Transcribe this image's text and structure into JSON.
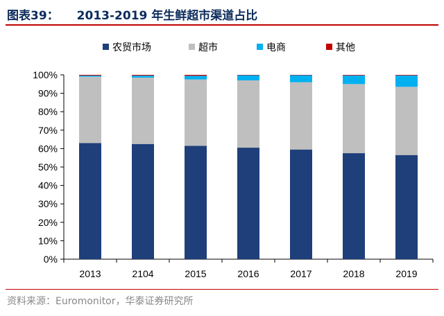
{
  "header": {
    "figure_label": "图表39：",
    "title": "2013-2019 年生鲜超市渠道占比"
  },
  "source_text": "资料来源：Euromonitor，华泰证券研究所",
  "chart_data": {
    "type": "bar",
    "stacked": true,
    "categories": [
      "2013",
      "2104",
      "2015",
      "2016",
      "2017",
      "2018",
      "2019"
    ],
    "series": [
      {
        "name": "农贸市场",
        "color": "#1f3f7a",
        "values": [
          63,
          62.5,
          61.5,
          60.5,
          59.5,
          57.5,
          56.5
        ]
      },
      {
        "name": "超市",
        "color": "#bfbfbf",
        "values": [
          36,
          36,
          36,
          36.5,
          36.5,
          37.5,
          37
        ]
      },
      {
        "name": "电商",
        "color": "#00b0f0",
        "values": [
          0.6,
          1.1,
          2.0,
          2.8,
          3.8,
          4.7,
          6.2
        ]
      },
      {
        "name": "其他",
        "color": "#c00000",
        "values": [
          0.4,
          0.4,
          0.5,
          0.2,
          0.2,
          0.3,
          0.3
        ]
      }
    ],
    "y_ticks": [
      "0%",
      "10%",
      "20%",
      "30%",
      "40%",
      "50%",
      "60%",
      "70%",
      "80%",
      "90%",
      "100%"
    ],
    "ylim": [
      0,
      100
    ],
    "grid": false,
    "legend_position": "top"
  }
}
